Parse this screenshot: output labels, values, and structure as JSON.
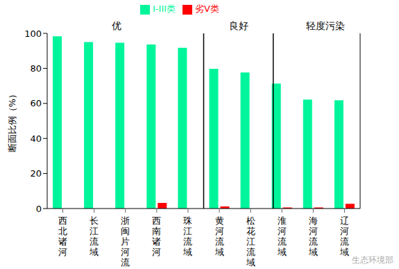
{
  "chart_data": {
    "type": "bar",
    "categories": [
      "西北诸河",
      "长江流域",
      "浙闽片河流",
      "西南诸河",
      "珠江流域",
      "黄河流域",
      "松花江流域",
      "淮河流域",
      "海河流域",
      "辽河流域"
    ],
    "series": [
      {
        "name": "I-III类",
        "color": "#00F59B",
        "values": [
          98.3,
          95.0,
          94.6,
          93.7,
          91.8,
          79.8,
          77.7,
          71.3,
          62.2,
          61.8
        ]
      },
      {
        "name": "劣V类",
        "color": "#FF0000",
        "values": [
          0,
          0,
          0,
          3.2,
          0,
          1.2,
          0,
          0.6,
          0.6,
          2.7
        ]
      }
    ],
    "ylabel": "断面比例（%）",
    "ylim": [
      0,
      100
    ],
    "yticks": [
      0,
      20,
      40,
      60,
      80,
      100
    ],
    "legend": "top",
    "groups": [
      {
        "label": "优",
        "start": 0,
        "end": 4
      },
      {
        "label": "良好",
        "start": 5,
        "end": 6
      },
      {
        "label": "轻度污染",
        "start": 7,
        "end": 9
      }
    ],
    "watermark": "生态环境部"
  }
}
